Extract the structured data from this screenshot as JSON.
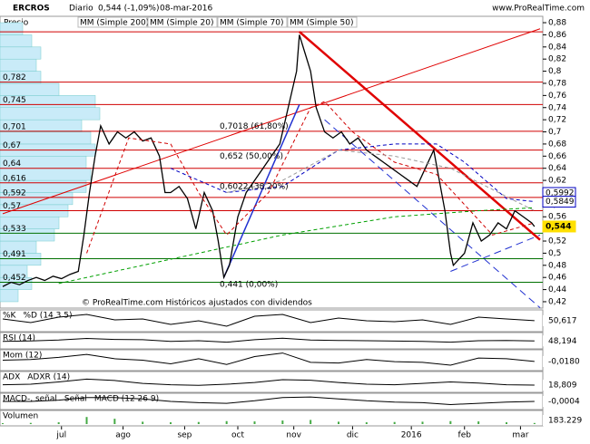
{
  "header": {
    "symbol": "ERCROS",
    "period": "Diario",
    "quote": "0,544 (-1,09%)",
    "date": "08-mar-2016",
    "site": "www.ProRealTime.com"
  },
  "chart_data": {
    "type": "line",
    "y_title": "Precio",
    "color": "#000000",
    "watermark": "© ProRealTime.com  Históricos ajustados con dividendos",
    "xlim": [
      0,
      192
    ],
    "ylim": [
      0.4095,
      0.8905
    ],
    "xticks": [
      {
        "value": 21,
        "label": "jul"
      },
      {
        "value": 43,
        "label": "ago"
      },
      {
        "value": 65,
        "label": "sep"
      },
      {
        "value": 84,
        "label": "oct"
      },
      {
        "value": 104,
        "label": "nov"
      },
      {
        "value": 125,
        "label": "dic"
      },
      {
        "value": 146,
        "label": "2016"
      },
      {
        "value": 165,
        "label": "feb"
      },
      {
        "value": 185,
        "label": "mar"
      }
    ],
    "yticks": [
      {
        "value": 0.42,
        "label": "0,42"
      },
      {
        "value": 0.44,
        "label": "0,44"
      },
      {
        "value": 0.46,
        "label": "0,46"
      },
      {
        "value": 0.48,
        "label": "0,48"
      },
      {
        "value": 0.5,
        "label": "0,5"
      },
      {
        "value": 0.52,
        "label": "0,52"
      },
      {
        "value": 0.54,
        "label": "0,54"
      },
      {
        "value": 0.56,
        "label": "0,56"
      },
      {
        "value": 0.58,
        "label": "0,58"
      },
      {
        "value": 0.6,
        "label": "0,6"
      },
      {
        "value": 0.62,
        "label": "0,62"
      },
      {
        "value": 0.64,
        "label": "0,64"
      },
      {
        "value": 0.66,
        "label": "0,66"
      },
      {
        "value": 0.68,
        "label": "0,68"
      },
      {
        "value": 0.7,
        "label": "0,7"
      },
      {
        "value": 0.72,
        "label": "0,72"
      },
      {
        "value": 0.74,
        "label": "0,74"
      },
      {
        "value": 0.76,
        "label": "0,76"
      },
      {
        "value": 0.78,
        "label": "0,78"
      },
      {
        "value": 0.8,
        "label": "0,8"
      },
      {
        "value": 0.82,
        "label": "0,82"
      },
      {
        "value": 0.84,
        "label": "0,84"
      },
      {
        "value": 0.86,
        "label": "0,86"
      },
      {
        "value": 0.88,
        "label": "0,88"
      }
    ],
    "series": [
      {
        "name": "ERCROS",
        "color": "#000000",
        "x": [
          0,
          3,
          6,
          9,
          12,
          15,
          18,
          21,
          24,
          27,
          29,
          31,
          33,
          35,
          38,
          41,
          44,
          47,
          50,
          53,
          56,
          58,
          60,
          63,
          66,
          69,
          72,
          75,
          77,
          79,
          81,
          84,
          87,
          90,
          93,
          96,
          99,
          101,
          103,
          105,
          106,
          108,
          110,
          112,
          115,
          118,
          121,
          124,
          127,
          130,
          133,
          136,
          139,
          142,
          145,
          148,
          151,
          154,
          156,
          158,
          160,
          161,
          163,
          165,
          168,
          171,
          174,
          177,
          180,
          183,
          186,
          189,
          190
        ],
        "values": [
          0.445,
          0.452,
          0.448,
          0.455,
          0.46,
          0.455,
          0.462,
          0.458,
          0.465,
          0.47,
          0.53,
          0.6,
          0.66,
          0.71,
          0.68,
          0.7,
          0.69,
          0.7,
          0.685,
          0.69,
          0.66,
          0.6,
          0.6,
          0.61,
          0.59,
          0.54,
          0.6,
          0.57,
          0.52,
          0.46,
          0.48,
          0.56,
          0.6,
          0.62,
          0.64,
          0.66,
          0.68,
          0.72,
          0.76,
          0.8,
          0.86,
          0.83,
          0.8,
          0.74,
          0.7,
          0.69,
          0.7,
          0.68,
          0.69,
          0.67,
          0.66,
          0.65,
          0.64,
          0.63,
          0.62,
          0.61,
          0.64,
          0.67,
          0.62,
          0.57,
          0.5,
          0.48,
          0.49,
          0.5,
          0.55,
          0.52,
          0.53,
          0.55,
          0.54,
          0.57,
          0.56,
          0.55,
          0.544
        ]
      },
      {
        "name": "MM (Simple 200)",
        "color": "#00a000",
        "x": [
          20,
          60,
          100,
          140,
          170,
          190
        ],
        "values": [
          0.45,
          0.49,
          0.53,
          0.56,
          0.57,
          0.575
        ]
      },
      {
        "name": "MM (Simple 20)",
        "color": "#d00000",
        "x": [
          30,
          45,
          60,
          70,
          80,
          95,
          110,
          115,
          125,
          140,
          155,
          165,
          175,
          190
        ],
        "values": [
          0.5,
          0.69,
          0.68,
          0.6,
          0.53,
          0.6,
          0.74,
          0.75,
          0.7,
          0.65,
          0.63,
          0.58,
          0.53,
          0.55
        ]
      },
      {
        "name": "MM (Simple 70)",
        "color": "#0000c0",
        "x": [
          60,
          80,
          100,
          120,
          140,
          155,
          165,
          180,
          190
        ],
        "values": [
          0.64,
          0.6,
          0.61,
          0.67,
          0.68,
          0.68,
          0.65,
          0.59,
          0.585
        ]
      },
      {
        "name": "MM (Simple 50)",
        "color": "#999999",
        "x": [
          80,
          100,
          120,
          140,
          160,
          190
        ],
        "values": [
          0.6,
          0.62,
          0.67,
          0.66,
          0.64,
          0.57
        ]
      }
    ],
    "levels": [
      {
        "value": 0.865,
        "color": "#d00000"
      },
      {
        "value": 0.782,
        "label": "0,782",
        "color": "#d00000"
      },
      {
        "value": 0.745,
        "label": "0,745",
        "color": "#d00000"
      },
      {
        "value": 0.701,
        "label": "0,701",
        "color": "#d00000"
      },
      {
        "value": 0.67,
        "label": "0,67",
        "color": "#d00000"
      },
      {
        "value": 0.64,
        "label": "0,64",
        "color": "#d00000"
      },
      {
        "value": 0.616,
        "label": "0,616",
        "color": "#d00000"
      },
      {
        "value": 0.592,
        "label": "0,592",
        "color": "#d00000"
      },
      {
        "value": 0.57,
        "label": "0,57",
        "color": "#d00000"
      },
      {
        "value": 0.533,
        "label": "0,533",
        "color": "#007000"
      },
      {
        "value": 0.491,
        "label": "0,491",
        "color": "#007000"
      },
      {
        "value": 0.452,
        "label": "0,452",
        "color": "#007000"
      }
    ],
    "fib_labels": [
      {
        "value": 0.7018,
        "label": "0,7018 (61,80%)"
      },
      {
        "value": 0.652,
        "label": "0,652 (50,00%)"
      },
      {
        "value": 0.6022,
        "label": "0,6022 (38,20%)"
      },
      {
        "value": 0.441,
        "label": "0,441 (0,00%)"
      }
    ],
    "price_labels": [
      {
        "value": 0.5992,
        "label": "0,5992",
        "color": "#0000c0"
      },
      {
        "value": 0.5849,
        "label": "0,5849",
        "color": "#0000c0"
      },
      {
        "value": 0.544,
        "label": "0,544",
        "color": "#ffe000"
      }
    ],
    "trend_lines": [
      {
        "x": [
          106,
          192
        ],
        "y": [
          0.865,
          0.522
        ],
        "color": "#e00000",
        "width": 2.5
      },
      {
        "x": [
          0,
          192
        ],
        "y": [
          0.565,
          0.87
        ],
        "color": "#e00000",
        "width": 1
      },
      {
        "x": [
          79,
          106
        ],
        "y": [
          0.46,
          0.745
        ],
        "color": "#2030d0",
        "width": 1.5
      },
      {
        "x": [
          115,
          192
        ],
        "y": [
          0.72,
          0.41
        ],
        "color": "#2030d0",
        "width": 1,
        "dash": true
      },
      {
        "x": [
          160,
          192
        ],
        "y": [
          0.47,
          0.53
        ],
        "color": "#2030d0",
        "width": 1,
        "dash": true
      }
    ],
    "volume_profile": {
      "xlim": [
        0,
        110
      ],
      "levels": [
        0.42,
        0.44,
        0.46,
        0.48,
        0.5,
        0.52,
        0.54,
        0.56,
        0.58,
        0.6,
        0.62,
        0.64,
        0.66,
        0.68,
        0.7,
        0.72,
        0.74,
        0.76,
        0.78,
        0.8,
        0.82,
        0.84,
        0.86
      ],
      "values": [
        20,
        35,
        30,
        45,
        40,
        60,
        65,
        75,
        80,
        95,
        100,
        95,
        105,
        100,
        90,
        110,
        105,
        65,
        45,
        40,
        45,
        35,
        25
      ]
    },
    "indicators": [
      {
        "title": "%K",
        "title2": "%D (14 3 5)",
        "ylim": [
          0,
          100
        ],
        "x": [
          0,
          10,
          20,
          30,
          40,
          50,
          60,
          70,
          80,
          90,
          100,
          110,
          120,
          130,
          140,
          150,
          160,
          170,
          180,
          190
        ],
        "values": [
          60,
          40,
          70,
          85,
          55,
          60,
          30,
          50,
          20,
          75,
          85,
          40,
          65,
          50,
          45,
          55,
          30,
          70,
          60,
          50.617
        ],
        "last": {
          "value": 50.617,
          "label": "50,617"
        }
      },
      {
        "title": "RSI (14)",
        "ylim": [
          0,
          100
        ],
        "x": [
          0,
          10,
          20,
          30,
          40,
          50,
          60,
          70,
          80,
          90,
          100,
          110,
          120,
          130,
          140,
          150,
          160,
          170,
          180,
          190
        ],
        "values": [
          45,
          48,
          55,
          68,
          60,
          58,
          45,
          50,
          38,
          58,
          70,
          55,
          52,
          50,
          47,
          45,
          38,
          50,
          52,
          48.194
        ],
        "last": {
          "value": 48.194,
          "label": "48,194"
        }
      },
      {
        "title": "Mom (12)",
        "ylim": [
          -0.12,
          0.12
        ],
        "x": [
          0,
          10,
          20,
          30,
          40,
          50,
          60,
          70,
          80,
          90,
          100,
          110,
          120,
          130,
          140,
          150,
          160,
          170,
          180,
          190
        ],
        "values": [
          0,
          0.01,
          0.04,
          0.08,
          0.02,
          0.0,
          -0.05,
          0.02,
          -0.06,
          0.05,
          0.1,
          -0.03,
          -0.04,
          0.01,
          -0.02,
          -0.03,
          -0.07,
          0.03,
          0.02,
          -0.018
        ],
        "last": {
          "value": -0.018,
          "label": "-0,0180"
        }
      },
      {
        "title": "ADX",
        "title2": "ADXR (14)",
        "ylim": [
          0,
          60
        ],
        "x": [
          0,
          10,
          20,
          30,
          40,
          50,
          60,
          70,
          80,
          90,
          100,
          110,
          120,
          130,
          140,
          150,
          160,
          170,
          180,
          190
        ],
        "values": [
          20,
          22,
          30,
          40,
          35,
          25,
          20,
          18,
          22,
          28,
          38,
          36,
          28,
          22,
          20,
          25,
          30,
          26,
          20,
          18.809
        ],
        "last": {
          "value": 18.809,
          "label": "18,809"
        }
      },
      {
        "title": "MACD-, señal",
        "title2": "Señal",
        "title3": "MACD (12 26 9)",
        "ylim": [
          -0.05,
          0.05
        ],
        "x": [
          0,
          10,
          20,
          30,
          40,
          50,
          60,
          70,
          80,
          90,
          100,
          110,
          120,
          130,
          140,
          150,
          160,
          170,
          180,
          190
        ],
        "values": [
          0,
          0,
          0.01,
          0.03,
          0.03,
          0.02,
          0.0,
          -0.01,
          -0.015,
          0.005,
          0.03,
          0.035,
          0.02,
          0.005,
          -0.005,
          -0.01,
          -0.025,
          -0.015,
          -0.005,
          -0.0004
        ],
        "last": {
          "value": -0.0004,
          "label": "-0,0004"
        }
      },
      {
        "title": "Volumen",
        "ylim": [
          0,
          2000000
        ],
        "x": [
          0,
          10,
          20,
          30,
          40,
          50,
          60,
          70,
          80,
          90,
          100,
          110,
          120,
          130,
          140,
          150,
          160,
          170,
          180,
          190
        ],
        "values": [
          150000,
          200000,
          300000,
          1200000,
          900000,
          400000,
          300000,
          350000,
          500000,
          450000,
          600000,
          700000,
          400000,
          300000,
          350000,
          400000,
          500000,
          450000,
          300000,
          183229
        ],
        "last": {
          "value": 183229,
          "label": "183.229"
        }
      }
    ]
  }
}
